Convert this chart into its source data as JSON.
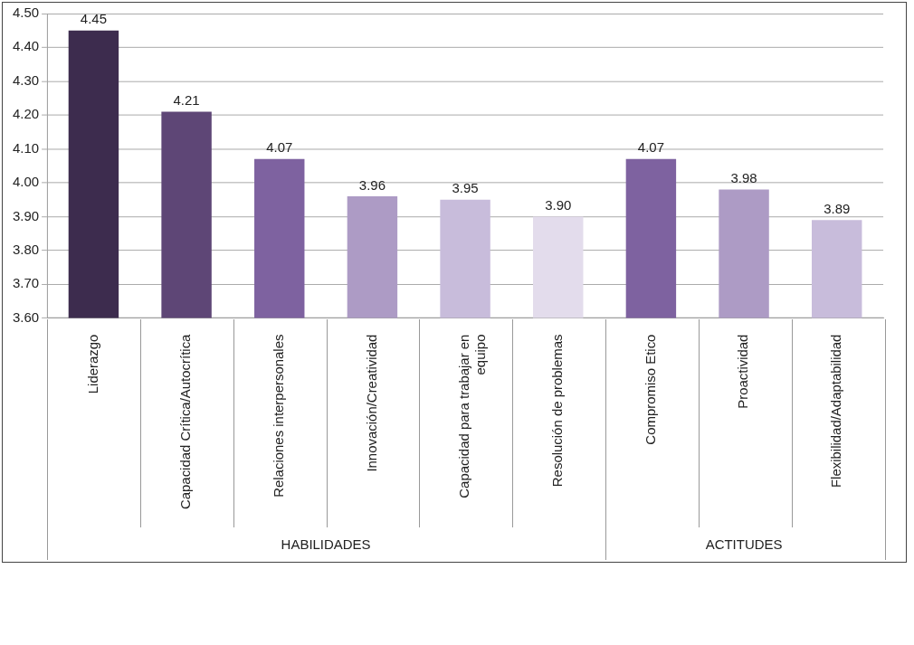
{
  "chart_data": {
    "type": "bar",
    "categories": [
      "Liderazgo",
      "Capacidad Crítica/Autocrítica",
      "Relaciones interpersonales",
      "Innovación/Creatividad",
      "Capacidad para trabajar en equipo",
      "Resolución de problemas",
      "Compromiso Etico",
      "Proactividad",
      "Flexibilidad/Adaptabilidad"
    ],
    "values": [
      4.45,
      4.21,
      4.07,
      3.96,
      3.95,
      3.9,
      4.07,
      3.98,
      3.89
    ],
    "value_labels": [
      "4.45",
      "4.21",
      "4.07",
      "3.96",
      "3.95",
      "3.90",
      "4.07",
      "3.98",
      "3.89"
    ],
    "colors": [
      "#3d2c4e",
      "#5e4676",
      "#7e62a0",
      "#ad9bc5",
      "#c8bcdb",
      "#e3dcec",
      "#7e62a0",
      "#ad9bc5",
      "#c8bcdb"
    ],
    "ylim": [
      3.6,
      4.5
    ],
    "yticks": [
      {
        "value": 3.6,
        "label": "3.60"
      },
      {
        "value": 3.7,
        "label": "3.70"
      },
      {
        "value": 3.8,
        "label": "3.80"
      },
      {
        "value": 3.9,
        "label": "3.90"
      },
      {
        "value": 4.0,
        "label": "4.00"
      },
      {
        "value": 4.1,
        "label": "4.10"
      },
      {
        "value": 4.2,
        "label": "4.20"
      },
      {
        "value": 4.3,
        "label": "4.30"
      },
      {
        "value": 4.4,
        "label": "4.40"
      },
      {
        "value": 4.5,
        "label": "4.50"
      }
    ],
    "grid": "y",
    "annotations": [
      "HABILIDADES",
      "ACTITUDES"
    ]
  }
}
